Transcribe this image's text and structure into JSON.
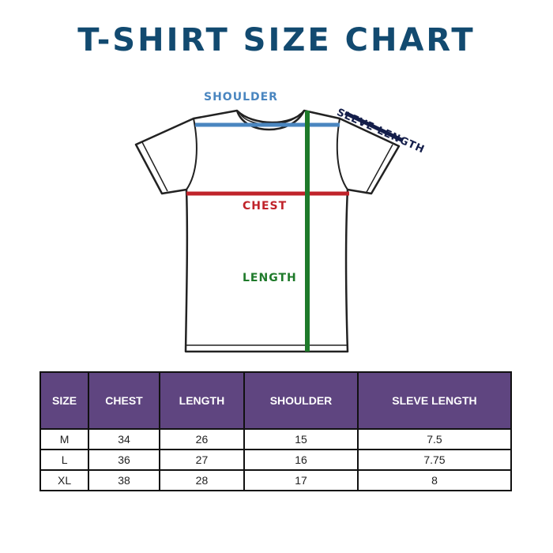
{
  "title": "T-SHIRT SIZE CHART",
  "labels": {
    "shoulder": "SHOULDER",
    "sleeve": "SLEVE LENGTH",
    "chest": "CHEST",
    "length": "LENGTH"
  },
  "colors": {
    "title": "#124a70",
    "shoulder": "#4a86c0",
    "sleeve": "#141e4a",
    "chest": "#c0232a",
    "length": "#1e7a2a",
    "header": "#5f4580"
  },
  "table": {
    "headers": [
      "SIZE",
      "CHEST",
      "LENGTH",
      "SHOULDER",
      "SLEVE LENGTH"
    ],
    "rows": [
      [
        "M",
        "34",
        "26",
        "15",
        "7.5"
      ],
      [
        "L",
        "36",
        "27",
        "16",
        "7.75"
      ],
      [
        "XL",
        "38",
        "28",
        "17",
        "8"
      ]
    ]
  }
}
